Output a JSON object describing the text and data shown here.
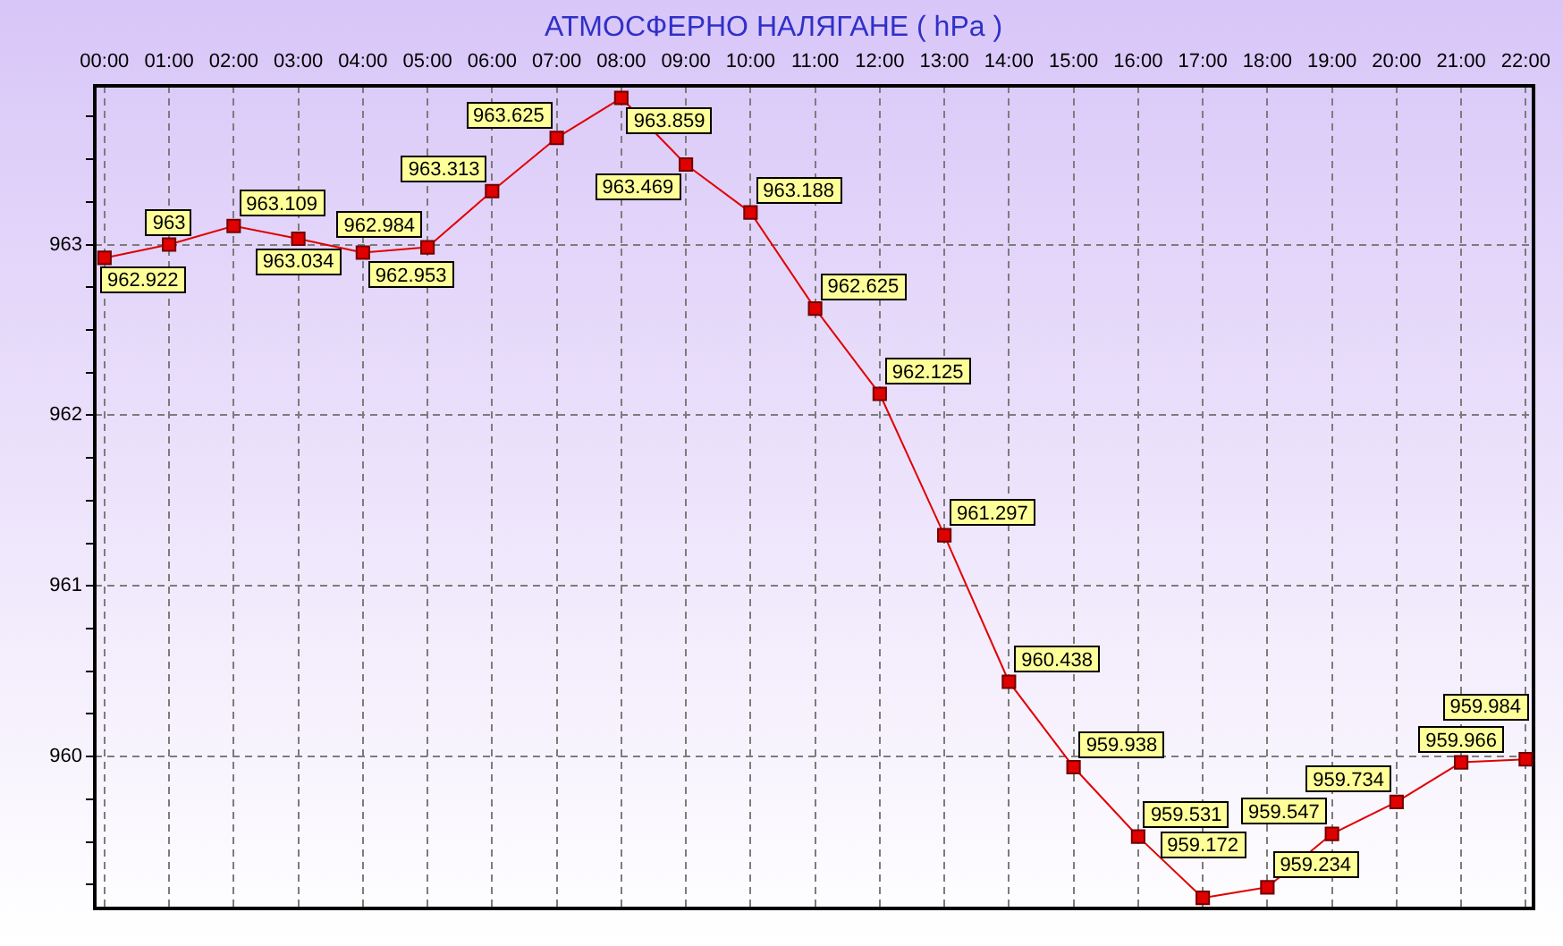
{
  "chart_data": {
    "type": "line",
    "title": "АТМОСФЕРНО НАЛЯГАНЕ ( hPa )",
    "x": [
      0,
      1,
      2,
      3,
      4,
      5,
      6,
      7,
      8,
      9,
      10,
      11,
      12,
      13,
      14,
      15,
      16,
      17,
      18,
      19,
      20,
      21,
      22
    ],
    "xlim": [
      -0.15,
      22.12
    ],
    "xticks": [
      {
        "value": 0,
        "label": "00:00"
      },
      {
        "value": 1,
        "label": "01:00"
      },
      {
        "value": 2,
        "label": "02:00"
      },
      {
        "value": 3,
        "label": "03:00"
      },
      {
        "value": 4,
        "label": "04:00"
      },
      {
        "value": 5,
        "label": "05:00"
      },
      {
        "value": 6,
        "label": "06:00"
      },
      {
        "value": 7,
        "label": "07:00"
      },
      {
        "value": 8,
        "label": "08:00"
      },
      {
        "value": 9,
        "label": "09:00"
      },
      {
        "value": 10,
        "label": "10:00"
      },
      {
        "value": 11,
        "label": "11:00"
      },
      {
        "value": 12,
        "label": "12:00"
      },
      {
        "value": 13,
        "label": "13:00"
      },
      {
        "value": 14,
        "label": "14:00"
      },
      {
        "value": 15,
        "label": "15:00"
      },
      {
        "value": 16,
        "label": "16:00"
      },
      {
        "value": 17,
        "label": "17:00"
      },
      {
        "value": 18,
        "label": "18:00"
      },
      {
        "value": 19,
        "label": "19:00"
      },
      {
        "value": 20,
        "label": "20:00"
      },
      {
        "value": 21,
        "label": "21:00"
      },
      {
        "value": 22,
        "label": "22:00"
      }
    ],
    "ylim": [
      959.11,
      963.93
    ],
    "yticks": [
      {
        "value": 959.25,
        "label": null
      },
      {
        "value": 959.5,
        "label": null
      },
      {
        "value": 959.75,
        "label": null
      },
      960,
      {
        "value": 960.25,
        "label": null
      },
      {
        "value": 960.5,
        "label": null
      },
      {
        "value": 960.75,
        "label": null
      },
      961,
      {
        "value": 961.25,
        "label": null
      },
      {
        "value": 961.5,
        "label": null
      },
      {
        "value": 961.75,
        "label": null
      },
      962,
      {
        "value": 962.25,
        "label": null
      },
      {
        "value": 962.5,
        "label": null
      },
      {
        "value": 962.75,
        "label": null
      },
      963,
      {
        "value": 963.25,
        "label": null
      },
      {
        "value": 963.5,
        "label": null
      },
      {
        "value": 963.75,
        "label": null
      }
    ],
    "series": [
      {
        "color": "#e00000",
        "values": [
          962.922,
          963,
          963.109,
          963.034,
          962.953,
          962.984,
          963.313,
          963.625,
          963.859,
          963.469,
          963.188,
          962.625,
          962.125,
          961.297,
          960.438,
          959.938,
          959.531,
          959.172,
          959.234,
          959.547,
          959.734,
          959.966,
          959.984
        ]
      }
    ],
    "grid": true,
    "marker": "square",
    "line_style": "solid",
    "data_labels": true
  }
}
